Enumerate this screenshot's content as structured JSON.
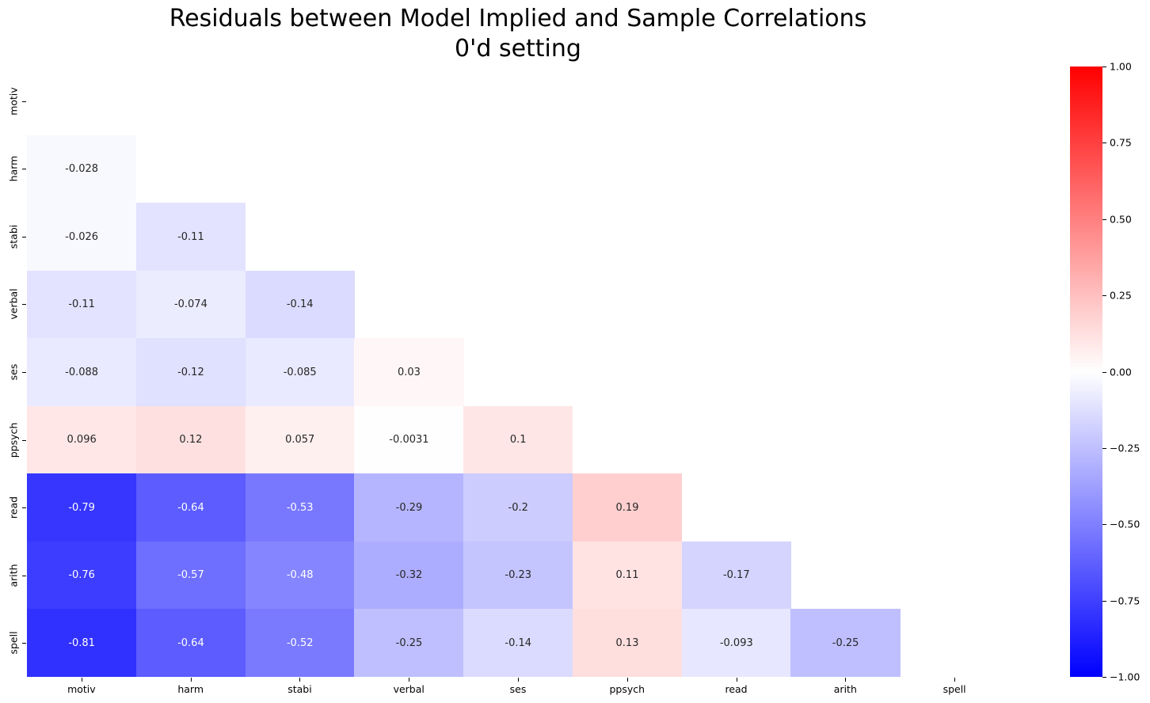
{
  "title": {
    "line1": "Residuals between Model Implied and Sample Correlations",
    "line2": "0'd setting"
  },
  "chart_data": {
    "type": "heatmap",
    "mask": "upper-triangle-and-diagonal-hidden",
    "categories": [
      "motiv",
      "harm",
      "stabi",
      "verbal",
      "ses",
      "ppsych",
      "read",
      "arith",
      "spell"
    ],
    "rows": [
      {
        "label": "motiv",
        "values": []
      },
      {
        "label": "harm",
        "values": [
          -0.028
        ]
      },
      {
        "label": "stabi",
        "values": [
          -0.026,
          -0.11
        ]
      },
      {
        "label": "verbal",
        "values": [
          -0.11,
          -0.074,
          -0.14
        ]
      },
      {
        "label": "ses",
        "values": [
          -0.088,
          -0.12,
          -0.085,
          0.03
        ]
      },
      {
        "label": "ppsych",
        "values": [
          0.096,
          0.12,
          0.057,
          -0.0031,
          0.1
        ]
      },
      {
        "label": "read",
        "values": [
          -0.79,
          -0.64,
          -0.53,
          -0.29,
          -0.2,
          0.19
        ]
      },
      {
        "label": "arith",
        "values": [
          -0.76,
          -0.57,
          -0.48,
          -0.32,
          -0.23,
          0.11,
          -0.17
        ]
      },
      {
        "label": "spell",
        "values": [
          -0.81,
          -0.64,
          -0.52,
          -0.25,
          -0.14,
          0.13,
          -0.093,
          -0.25
        ]
      }
    ],
    "value_range": [
      -1,
      1
    ],
    "colormap": {
      "name": "bwr",
      "negative_color": "#0000ff",
      "zero_color": "#ffffff",
      "positive_color": "#ff0000"
    },
    "annotation_colors": {
      "dark": "#262626",
      "light": "#ffffff"
    },
    "colorbar": {
      "position": "right",
      "tick_labels": [
        "1.00",
        "0.75",
        "0.50",
        "0.25",
        "0.00",
        "−0.25",
        "−0.50",
        "−0.75",
        "−1.00"
      ]
    },
    "grid": false,
    "legend": false
  }
}
